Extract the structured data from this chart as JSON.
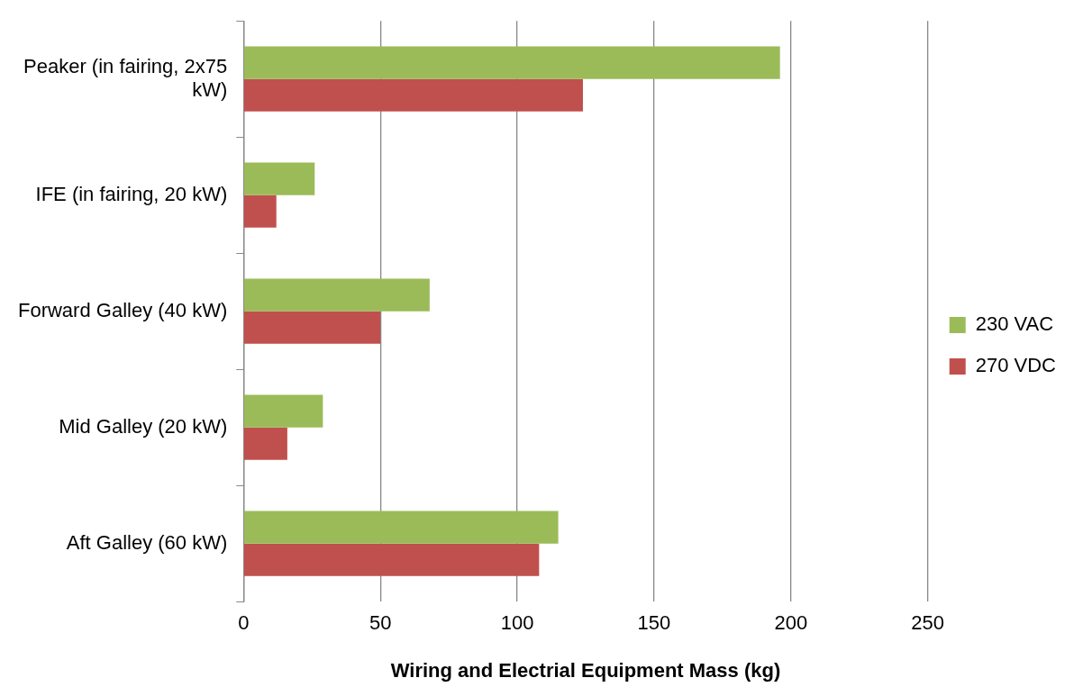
{
  "chart_data": {
    "type": "bar",
    "orientation": "horizontal",
    "xlabel": "Wiring and Electrial Equipment Mass (kg)",
    "categories": [
      "Peaker (in fairing, 2x75 kW)",
      "IFE (in fairing, 20 kW)",
      "Forward Galley (40 kW)",
      "Mid Galley (20 kW)",
      "Aft Galley (60 kW)"
    ],
    "series": [
      {
        "name": "230 VAC",
        "color": "#9bbb59",
        "values": [
          196,
          26,
          68,
          29,
          115
        ]
      },
      {
        "name": "270 VDC",
        "color": "#c0504d",
        "values": [
          124,
          12,
          50,
          16,
          108
        ]
      }
    ],
    "xlim": [
      0,
      250
    ],
    "xticks": [
      0,
      50,
      100,
      150,
      200,
      250
    ],
    "grid": "x",
    "legend": "right"
  }
}
